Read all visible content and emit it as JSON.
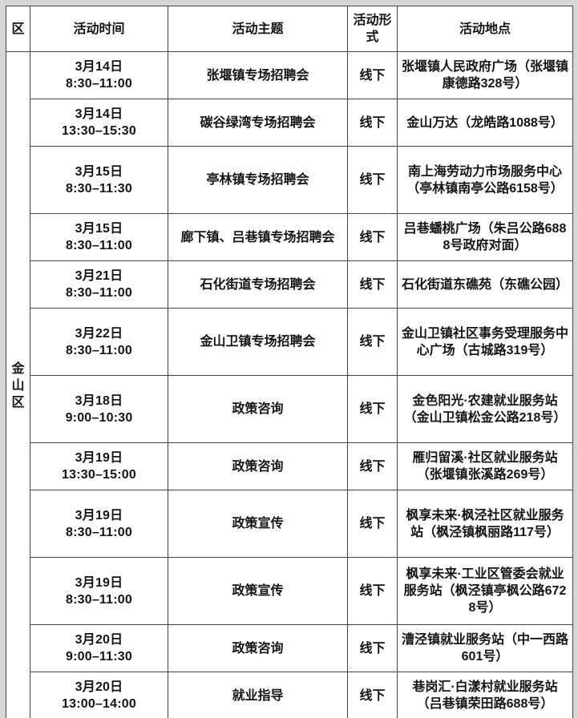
{
  "table": {
    "headers": {
      "district": "区",
      "time": "活动时间",
      "theme": "活动主题",
      "format": "活动形式",
      "location": "活动地点"
    },
    "district": "金山区",
    "rows": [
      {
        "date": "3月14日",
        "time": "8:30–11:00",
        "theme": "张堰镇专场招聘会",
        "format": "线下",
        "location": "张堰镇人民政府广场（张堰镇康德路328号）"
      },
      {
        "date": "3月14日",
        "time": "13:30–15:30",
        "theme": "碳谷绿湾专场招聘会",
        "format": "线下",
        "location": "金山万达（龙皓路1088号）"
      },
      {
        "date": "3月15日",
        "time": "8:30–11:30",
        "theme": "亭林镇专场招聘会",
        "format": "线下",
        "location": "南上海劳动力市场服务中心（亭林镇南亭公路6158号）"
      },
      {
        "date": "3月15日",
        "time": "8:30–11:00",
        "theme": "廊下镇、吕巷镇专场招聘会",
        "format": "线下",
        "location": "吕巷蟠桃广场（朱吕公路6888号政府对面）"
      },
      {
        "date": "3月21日",
        "time": "8:30–11:00",
        "theme": "石化街道专场招聘会",
        "format": "线下",
        "location": "石化街道东礁苑（东礁公园）"
      },
      {
        "date": "3月22日",
        "time": "8:30–11:00",
        "theme": "金山卫镇专场招聘会",
        "format": "线下",
        "location": "金山卫镇社区事务受理服务中心广场（古城路319号）"
      },
      {
        "date": "3月18日",
        "time": "9:00–10:30",
        "theme": "政策咨询",
        "format": "线下",
        "location": "金色阳光·农建就业服务站（金山卫镇松金公路218号）"
      },
      {
        "date": "3月19日",
        "time": "13:30–15:00",
        "theme": "政策咨询",
        "format": "线下",
        "location": "雁归留溪·社区就业服务站（张堰镇张溪路269号）"
      },
      {
        "date": "3月19日",
        "time": "8:30–11:00",
        "theme": "政策宣传",
        "format": "线下",
        "location": "枫享未来·枫泾社区就业服务站（枫泾镇枫丽路117号）"
      },
      {
        "date": "3月19日",
        "time": "8:30–11:00",
        "theme": "政策宣传",
        "format": "线下",
        "location": "枫享未来·工业区管委会就业服务站（枫泾镇亭枫公路6728号）"
      },
      {
        "date": "3月20日",
        "time": "9:00–11:30",
        "theme": "政策咨询",
        "format": "线下",
        "location": "漕泾镇就业服务站（中一西路601号）"
      },
      {
        "date": "3月20日",
        "time": "13:00–14:00",
        "theme": "就业指导",
        "format": "线下",
        "location": "巷岗汇·白漾村就业服务站（吕巷镇荣田路688号）"
      }
    ]
  },
  "colors": {
    "page_background": "#d6d6d6",
    "cell_background": "#ffffff",
    "border": "#454545",
    "text": "#141414"
  }
}
